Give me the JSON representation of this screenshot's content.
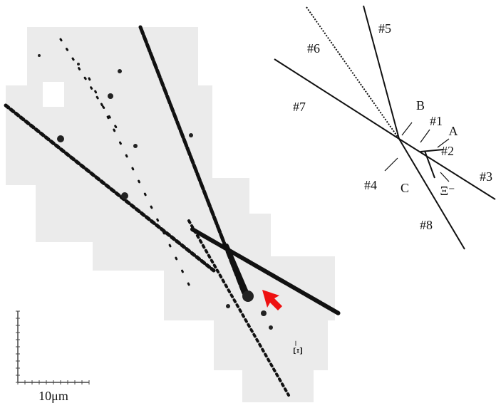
{
  "micrograph": {
    "particle_label": "Ξ⁻",
    "scale_label": "10μm"
  },
  "schematic": {
    "labels": [
      "#5",
      "#6",
      "#7",
      "B",
      "#1",
      "A",
      "#2",
      "#3",
      "#4",
      "C",
      "Ξ⁻",
      "#8"
    ]
  }
}
